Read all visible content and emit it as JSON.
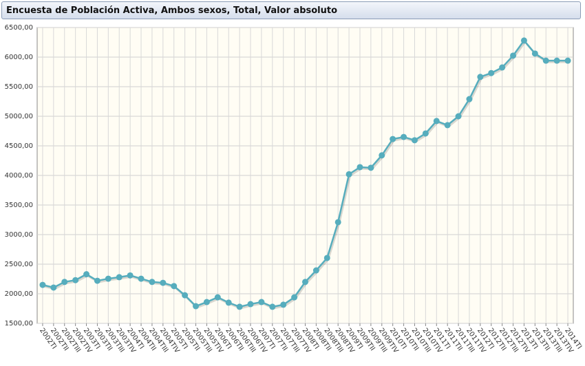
{
  "chart_data": {
    "type": "line",
    "title": "Encuesta de Población Activa, Ambos sexos, Total, Valor absoluto",
    "categories": [
      "2002TI",
      "2002TII",
      "2002TIII",
      "2002TIV",
      "2003TI",
      "2003TII",
      "2003TIII",
      "2003TIV",
      "2004TI",
      "2004TII",
      "2004TIII",
      "2004TIV",
      "2005TI",
      "2005TII",
      "2005TIII",
      "2005TIV",
      "2006TI",
      "2006TII",
      "2006TIII",
      "2006TIV",
      "2007TI",
      "2007TII",
      "2007TIII",
      "2007TIV",
      "2008TI",
      "2008TII",
      "2008TIII",
      "2008TIV",
      "2009TI",
      "2009TII",
      "2009TIII",
      "2009TIV",
      "2010TI",
      "2010TII",
      "2010TIII",
      "2010TIV",
      "2011TI",
      "2011TII",
      "2011TIII",
      "2011TIV",
      "2012TI",
      "2012TII",
      "2012TIII",
      "2012TIV",
      "2013TI",
      "2013TII",
      "2013TIII",
      "2013TIV",
      "2014TI"
    ],
    "values": [
      2150,
      2105,
      2200,
      2230,
      2330,
      2220,
      2255,
      2280,
      2310,
      2255,
      2200,
      2185,
      2130,
      1975,
      1790,
      1860,
      1940,
      1850,
      1780,
      1825,
      1860,
      1780,
      1815,
      1940,
      2200,
      2395,
      2605,
      3210,
      4020,
      4140,
      4130,
      4340,
      4615,
      4650,
      4595,
      4710,
      4920,
      4850,
      5000,
      5290,
      5665,
      5730,
      5825,
      6025,
      6280,
      6060,
      5940,
      5940,
      5940
    ],
    "color": "#56adbd",
    "ylim": [
      1500,
      6500
    ],
    "yticks": [
      {
        "value": 1500,
        "label": "1500,00"
      },
      {
        "value": 2000,
        "label": "2000,00"
      },
      {
        "value": 2500,
        "label": "2500,00"
      },
      {
        "value": 3000,
        "label": "3000,00"
      },
      {
        "value": 3500,
        "label": "3500,00"
      },
      {
        "value": 4000,
        "label": "4000,00"
      },
      {
        "value": 4500,
        "label": "4500,00"
      },
      {
        "value": 5000,
        "label": "5000,00"
      },
      {
        "value": 5500,
        "label": "5500,00"
      },
      {
        "value": 6000,
        "label": "6000,00"
      },
      {
        "value": 6500,
        "label": "6500,00"
      }
    ],
    "grid": true
  }
}
